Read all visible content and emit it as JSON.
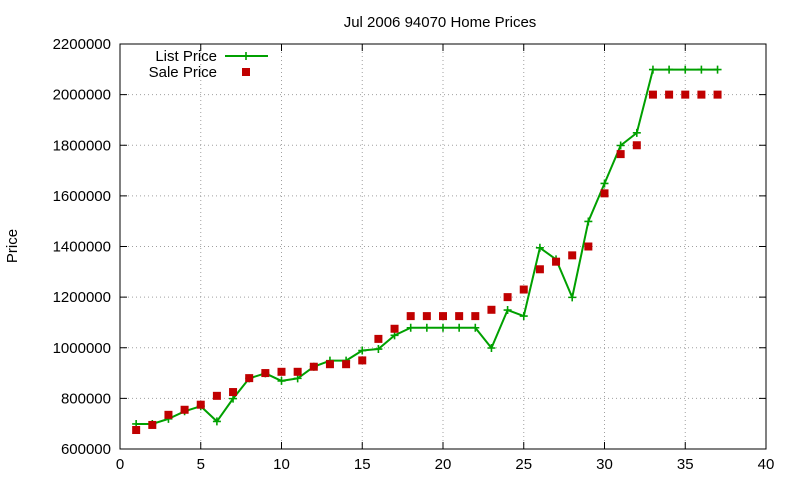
{
  "chart_data": {
    "type": "line",
    "title": "Jul 2006 94070 Home Prices",
    "xlabel": "",
    "ylabel": "Price",
    "xlim": [
      0,
      40
    ],
    "ylim": [
      600000,
      2200000
    ],
    "x_ticks": [
      0,
      5,
      10,
      15,
      20,
      25,
      30,
      35,
      40
    ],
    "x_tick_labels": [
      "0",
      "5",
      "10",
      "15",
      "20",
      "25",
      "30",
      "35",
      "40"
    ],
    "y_ticks": [
      600000,
      800000,
      1000000,
      1200000,
      1400000,
      1600000,
      1800000,
      2000000,
      2200000
    ],
    "y_tick_labels": [
      "600000",
      "800000",
      "1000000",
      "1200000",
      "1400000",
      "1600000",
      "1800000",
      "2000000",
      "2200000"
    ],
    "grid": true,
    "legend_position": "top-left",
    "series": [
      {
        "name": "List Price",
        "style": "line-with-plus-markers",
        "color": "#00a000",
        "x": [
          1,
          2,
          3,
          4,
          5,
          6,
          7,
          8,
          9,
          10,
          11,
          12,
          13,
          14,
          15,
          16,
          17,
          18,
          19,
          20,
          21,
          22,
          23,
          24,
          25,
          26,
          27,
          28,
          29,
          30,
          31,
          32,
          33,
          34,
          35,
          36,
          37
        ],
        "y": [
          699000,
          699000,
          719000,
          749000,
          769000,
          709000,
          799000,
          879000,
          899000,
          869000,
          879000,
          925000,
          949000,
          949000,
          989000,
          995000,
          1049000,
          1079000,
          1079000,
          1079000,
          1079000,
          1079000,
          999000,
          1149000,
          1125000,
          1395000,
          1349000,
          1199000,
          1499000,
          1649000,
          1799000,
          1849000,
          2099000,
          2099000,
          2099000,
          2099000,
          2099000
        ]
      },
      {
        "name": "Sale Price",
        "style": "square-markers",
        "color": "#c00000",
        "x": [
          1,
          2,
          3,
          4,
          5,
          6,
          7,
          8,
          9,
          10,
          11,
          12,
          13,
          14,
          15,
          16,
          17,
          18,
          19,
          20,
          21,
          22,
          23,
          24,
          25,
          26,
          27,
          28,
          29,
          30,
          31,
          32,
          33,
          34,
          35,
          36,
          37
        ],
        "y": [
          675000,
          695000,
          735000,
          755000,
          775000,
          810000,
          825000,
          880000,
          900000,
          905000,
          905000,
          925000,
          935000,
          935000,
          950000,
          1035000,
          1075000,
          1125000,
          1125000,
          1125000,
          1125000,
          1125000,
          1150000,
          1200000,
          1230000,
          1310000,
          1340000,
          1365000,
          1400000,
          1610000,
          1765000,
          1800000,
          2000000,
          2000000,
          2000000,
          2000000,
          2000000
        ]
      }
    ]
  }
}
